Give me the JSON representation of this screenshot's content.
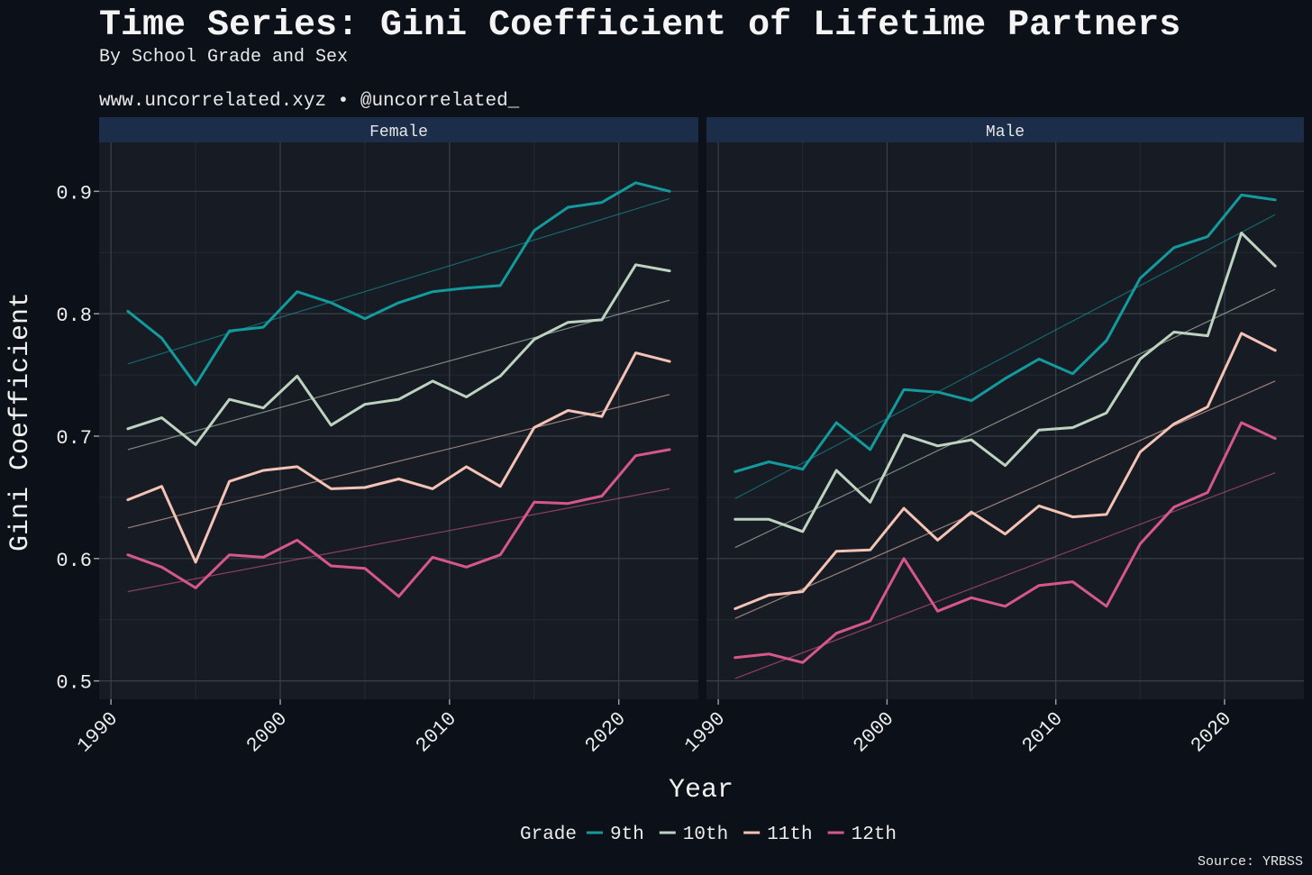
{
  "header": {
    "title": "Time Series: Gini Coefficient of Lifetime Partners",
    "subtitle": "By School Grade and Sex",
    "caption": "www.uncorrelated.xyz • @uncorrelated_"
  },
  "footer": {
    "source": "Source: YRBSS"
  },
  "colors": {
    "background": "#0c1018",
    "panel": "#171c24",
    "strip": "#1c2d4a",
    "9th": "#139a9c",
    "10th": "#bdd3c0",
    "11th": "#f4c3b5",
    "12th": "#d6578a"
  },
  "chart_data": {
    "type": "line",
    "xlabel": "Year",
    "ylabel": "Gini Coefficient",
    "xlim": [
      1989.3,
      2024.7
    ],
    "ylim": [
      0.485,
      0.94
    ],
    "x_ticks": [
      1990,
      2000,
      2010,
      2020
    ],
    "y_ticks": [
      0.5,
      0.6,
      0.7,
      0.8,
      0.9
    ],
    "grid": true,
    "legend": {
      "title": "Grade",
      "position": "bottom",
      "entries": [
        "9th",
        "10th",
        "11th",
        "12th"
      ]
    },
    "x": [
      1991,
      1993,
      1995,
      1997,
      1999,
      2001,
      2003,
      2005,
      2007,
      2009,
      2011,
      2013,
      2015,
      2017,
      2019,
      2021,
      2023
    ],
    "panels": [
      {
        "label": "Female",
        "series": [
          {
            "name": "9th",
            "values": [
              0.802,
              0.78,
              0.742,
              0.786,
              0.789,
              0.818,
              0.809,
              0.796,
              0.809,
              0.818,
              0.821,
              0.823,
              0.868,
              0.887,
              0.891,
              0.907,
              0.9
            ],
            "trend": [
              0.759,
              0.894
            ]
          },
          {
            "name": "10th",
            "values": [
              0.706,
              0.715,
              0.693,
              0.73,
              0.723,
              0.749,
              0.709,
              0.726,
              0.73,
              0.745,
              0.732,
              0.749,
              0.779,
              0.793,
              0.795,
              0.84,
              0.835
            ],
            "trend": [
              0.689,
              0.811
            ]
          },
          {
            "name": "11th",
            "values": [
              0.648,
              0.659,
              0.597,
              0.663,
              0.672,
              0.675,
              0.657,
              0.658,
              0.665,
              0.657,
              0.675,
              0.659,
              0.707,
              0.721,
              0.716,
              0.768,
              0.761
            ],
            "trend": [
              0.625,
              0.734
            ]
          },
          {
            "name": "12th",
            "values": [
              0.603,
              0.593,
              0.576,
              0.603,
              0.601,
              0.615,
              0.594,
              0.592,
              0.569,
              0.601,
              0.593,
              0.603,
              0.646,
              0.645,
              0.651,
              0.684,
              0.689
            ],
            "trend": [
              0.573,
              0.657
            ]
          }
        ]
      },
      {
        "label": "Male",
        "series": [
          {
            "name": "9th",
            "values": [
              0.671,
              0.679,
              0.673,
              0.711,
              0.689,
              0.738,
              0.736,
              0.729,
              0.747,
              0.763,
              0.751,
              0.778,
              0.829,
              0.854,
              0.863,
              0.897,
              0.893
            ],
            "trend": [
              0.649,
              0.881
            ]
          },
          {
            "name": "10th",
            "values": [
              0.632,
              0.632,
              0.622,
              0.672,
              0.646,
              0.701,
              0.692,
              0.697,
              0.676,
              0.705,
              0.707,
              0.719,
              0.763,
              0.785,
              0.782,
              0.866,
              0.839
            ],
            "trend": [
              0.609,
              0.82
            ]
          },
          {
            "name": "11th",
            "values": [
              0.559,
              0.57,
              0.573,
              0.606,
              0.607,
              0.641,
              0.615,
              0.638,
              0.62,
              0.643,
              0.634,
              0.636,
              0.687,
              0.71,
              0.724,
              0.784,
              0.77
            ],
            "trend": [
              0.551,
              0.745
            ]
          },
          {
            "name": "12th",
            "values": [
              0.519,
              0.522,
              0.515,
              0.539,
              0.549,
              0.6,
              0.557,
              0.568,
              0.561,
              0.578,
              0.581,
              0.561,
              0.612,
              0.642,
              0.654,
              0.711,
              0.698
            ],
            "trend": [
              0.502,
              0.67
            ]
          }
        ]
      }
    ]
  }
}
